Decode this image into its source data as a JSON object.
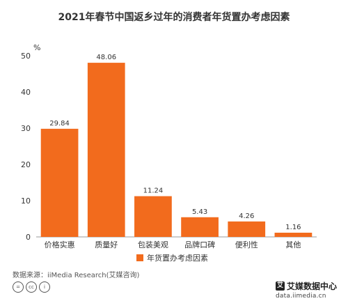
{
  "title": "2021年春节中国返乡过年的消费者年货置办考虑因素",
  "chart_data": {
    "type": "bar",
    "title": "2021年春节中国返乡过年的消费者年货置办考虑因素",
    "ylabel": "%",
    "xlabel": "",
    "categories": [
      "价格实惠",
      "质量好",
      "包装美观",
      "品牌口碑",
      "便利性",
      "其他"
    ],
    "series": [
      {
        "name": "年货置办考虑因素",
        "values": [
          29.84,
          48.06,
          11.24,
          5.43,
          4.26,
          1.16
        ],
        "color": "#F26B1D"
      }
    ],
    "data_labels": [
      "29.84",
      "48.06",
      "11.24",
      "5.43",
      "4.26",
      "1.16"
    ],
    "ylim": [
      0,
      50
    ],
    "yticks": [
      0,
      10,
      20,
      30,
      40,
      50
    ],
    "grid": false,
    "legend_position": "bottom"
  },
  "legend": {
    "label": "年货置办考虑因素",
    "color": "#F26B1D"
  },
  "source": "数据来源：iiMedia Research(艾媒咨询)",
  "license_icons": [
    "cc-equal-icon",
    "cc-icon",
    "cc-attribution-icon"
  ],
  "brand": {
    "mark": "艾",
    "name": "艾媒数据中心",
    "url": "data.iimedia.cn"
  }
}
